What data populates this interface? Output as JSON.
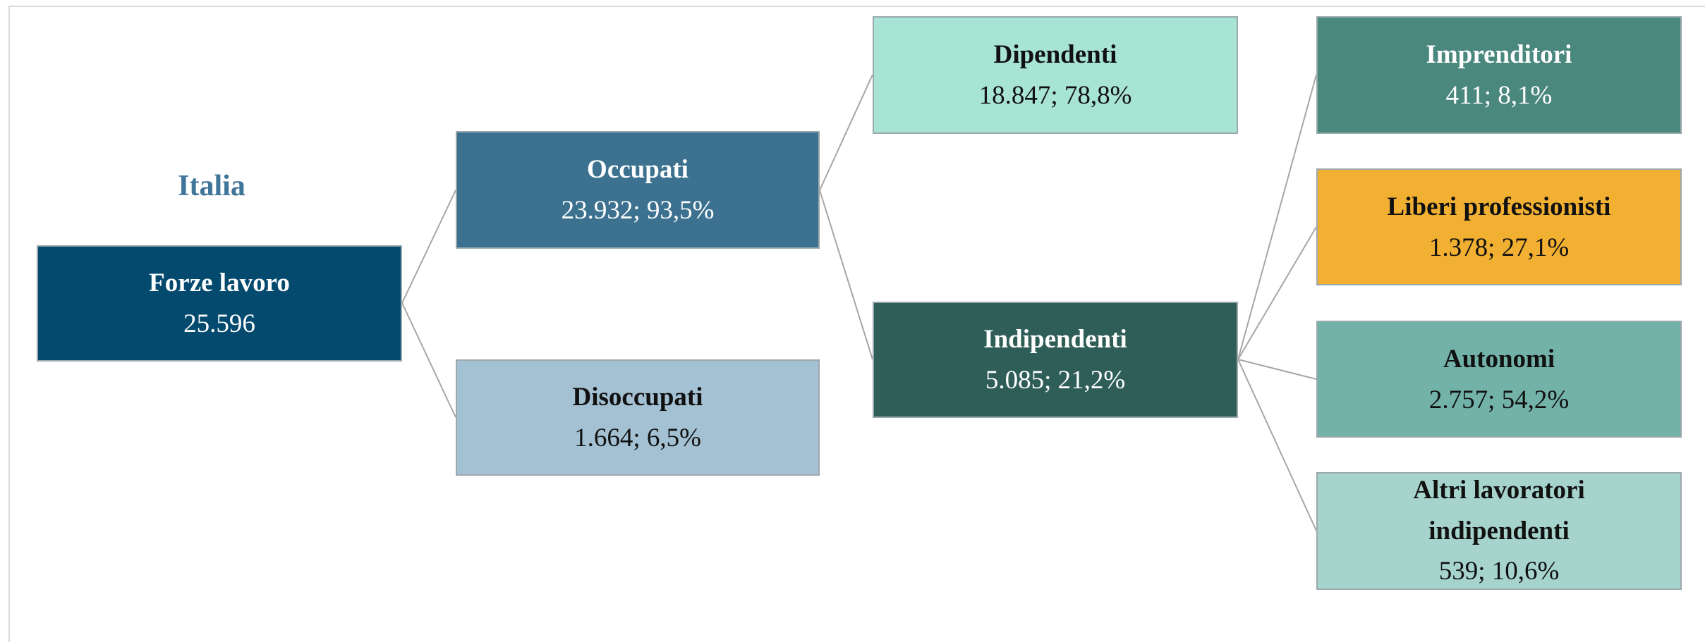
{
  "title": "Italia",
  "nodes": [
    {
      "label": "Forze lavoro",
      "value": "25.596"
    },
    {
      "label": "Occupati",
      "value": "23.932; 93,5%"
    },
    {
      "label": "Disoccupati",
      "value": "1.664; 6,5%"
    },
    {
      "label": "Dipendenti",
      "value": "18.847; 78,8%"
    },
    {
      "label": "Indipendenti",
      "value": "5.085; 21,2%"
    },
    {
      "label": "Imprenditori",
      "value": "411; 8,1%"
    },
    {
      "label": "Liberi professionisti",
      "value": "1.378; 27,1%"
    },
    {
      "label": "Autonomi",
      "value": "2.757; 54,2%"
    },
    {
      "label": "Altri lavoratori indipendenti",
      "value": "539; 10,6%"
    }
  ]
}
